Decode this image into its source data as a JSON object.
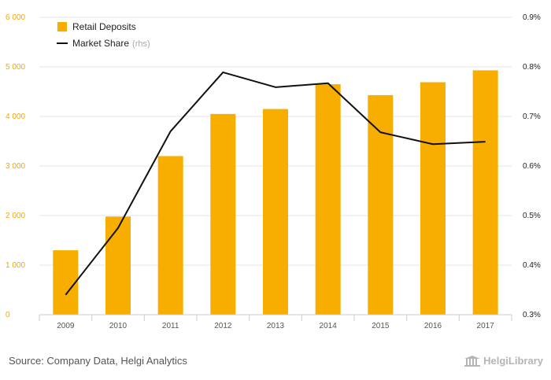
{
  "chart_data": {
    "type": "bar+line",
    "categories": [
      "2009",
      "2010",
      "2011",
      "2012",
      "2013",
      "2014",
      "2015",
      "2016",
      "2017"
    ],
    "series": [
      {
        "name": "Retail Deposits",
        "type": "bar",
        "axis": "left",
        "color": "#f7ae00",
        "values": [
          1300,
          1980,
          3200,
          4050,
          4150,
          4650,
          4430,
          4690,
          4930
        ]
      },
      {
        "name": "Market Share",
        "note": "(rhs)",
        "type": "line",
        "axis": "right",
        "color": "#111111",
        "values": [
          0.34,
          0.475,
          0.67,
          0.789,
          0.759,
          0.767,
          0.668,
          0.644,
          0.649
        ]
      }
    ],
    "y_left": {
      "ylim": [
        0,
        6000
      ],
      "ticks": [
        0,
        1000,
        2000,
        3000,
        4000,
        5000,
        6000
      ],
      "tick_labels": [
        "0",
        "1 000",
        "2 000",
        "3 000",
        "4 000",
        "5 000",
        "6 000"
      ]
    },
    "y_right": {
      "ylim": [
        0.3,
        0.9
      ],
      "ticks": [
        0.3,
        0.4,
        0.5,
        0.6,
        0.7,
        0.8,
        0.9
      ],
      "tick_labels": [
        "0.3%",
        "0.4%",
        "0.5%",
        "0.6%",
        "0.7%",
        "0.8%",
        "0.9%"
      ]
    },
    "gridlines": true,
    "legend_position": "top-left"
  },
  "footer": {
    "source": "Source: Company Data, Helgi Analytics",
    "brand": "HelgiLibrary"
  },
  "colors": {
    "grid": "#e6e6e6",
    "left_ticks": "#f2a900",
    "axis_line": "#cccccc"
  }
}
